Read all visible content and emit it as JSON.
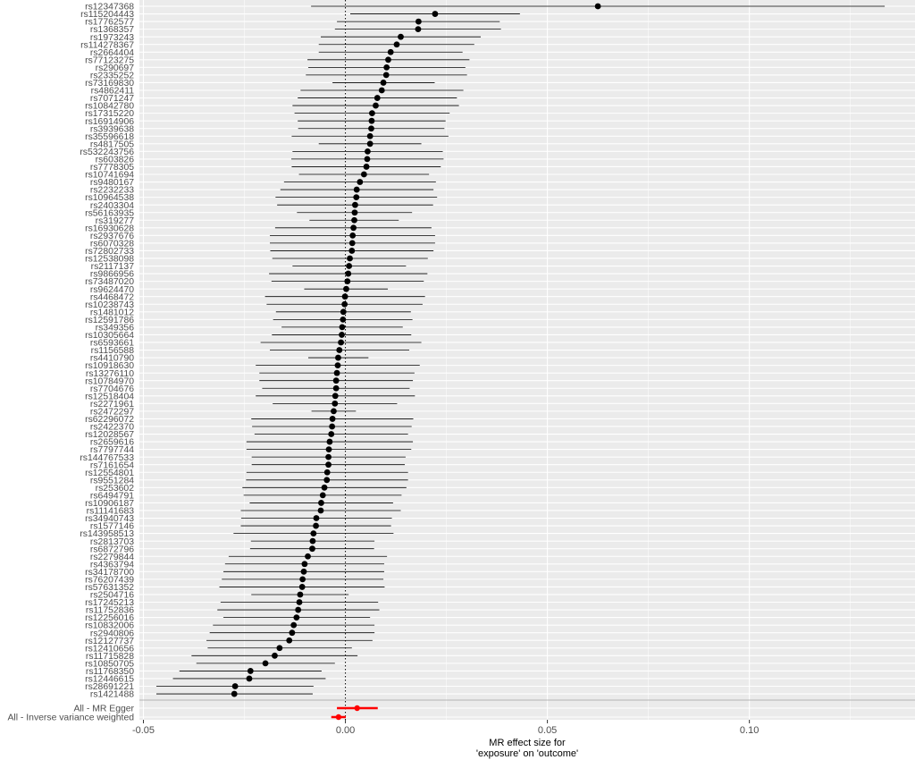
{
  "chart_data": {
    "type": "scatter",
    "subtype": "forest-plot",
    "title": "",
    "xlabel_lines": [
      "MR effect size for",
      "'exposure' on 'outcome'"
    ],
    "ylabel": "",
    "xlim": [
      -0.051,
      0.141
    ],
    "x_ticks": [
      -0.05,
      0,
      0.05,
      0.1
    ],
    "x_tick_labels": [
      "-0.05",
      "0.00",
      "0.05",
      "0.10"
    ],
    "grid": true,
    "reference_line_x": 0,
    "snps": [
      {
        "snp": "rs12347368",
        "b": 0.0625,
        "lo": -0.0085,
        "hi": 0.1335
      },
      {
        "snp": "rs115204443",
        "b": 0.0222,
        "lo": 0.0012,
        "hi": 0.0432
      },
      {
        "snp": "rs17762577",
        "b": 0.0181,
        "lo": -0.0021,
        "hi": 0.0382
      },
      {
        "snp": "rs1368357",
        "b": 0.018,
        "lo": -0.0026,
        "hi": 0.0385
      },
      {
        "snp": "rs1973243",
        "b": 0.0137,
        "lo": -0.0061,
        "hi": 0.0335
      },
      {
        "snp": "rs114278367",
        "b": 0.0127,
        "lo": -0.0066,
        "hi": 0.0319
      },
      {
        "snp": "rs2664404",
        "b": 0.0112,
        "lo": -0.0066,
        "hi": 0.029
      },
      {
        "snp": "rs77123275",
        "b": 0.0106,
        "lo": -0.0094,
        "hi": 0.0307
      },
      {
        "snp": "rs290697",
        "b": 0.0102,
        "lo": -0.0092,
        "hi": 0.0297
      },
      {
        "snp": "rs2335252",
        "b": 0.0101,
        "lo": -0.0098,
        "hi": 0.0301
      },
      {
        "snp": "rs73169830",
        "b": 0.0094,
        "lo": -0.0032,
        "hi": 0.0221
      },
      {
        "snp": "rs4862411",
        "b": 0.009,
        "lo": -0.0111,
        "hi": 0.0292
      },
      {
        "snp": "rs7071247",
        "b": 0.0079,
        "lo": -0.0118,
        "hi": 0.0276
      },
      {
        "snp": "rs10842780",
        "b": 0.0075,
        "lo": -0.0131,
        "hi": 0.0281
      },
      {
        "snp": "rs17315220",
        "b": 0.0066,
        "lo": -0.0126,
        "hi": 0.0258
      },
      {
        "snp": "rs16914906",
        "b": 0.0065,
        "lo": -0.0118,
        "hi": 0.0248
      },
      {
        "snp": "rs3939638",
        "b": 0.0064,
        "lo": -0.0117,
        "hi": 0.0245
      },
      {
        "snp": "rs35596618",
        "b": 0.0061,
        "lo": -0.0133,
        "hi": 0.0255
      },
      {
        "snp": "rs4817505",
        "b": 0.0061,
        "lo": -0.0066,
        "hi": 0.0188
      },
      {
        "snp": "rs532243756",
        "b": 0.0055,
        "lo": -0.0131,
        "hi": 0.0241
      },
      {
        "snp": "rs603826",
        "b": 0.0054,
        "lo": -0.0134,
        "hi": 0.0243
      },
      {
        "snp": "rs7778305",
        "b": 0.0052,
        "lo": -0.0133,
        "hi": 0.0236
      },
      {
        "snp": "rs10741694",
        "b": 0.0046,
        "lo": -0.0115,
        "hi": 0.0207
      },
      {
        "snp": "rs9480167",
        "b": 0.0036,
        "lo": -0.0152,
        "hi": 0.0224
      },
      {
        "snp": "rs2232233",
        "b": 0.0028,
        "lo": -0.0161,
        "hi": 0.0218
      },
      {
        "snp": "rs10964538",
        "b": 0.0027,
        "lo": -0.0173,
        "hi": 0.0227
      },
      {
        "snp": "rs2403304",
        "b": 0.0024,
        "lo": -0.0169,
        "hi": 0.0217
      },
      {
        "snp": "rs56163935",
        "b": 0.0023,
        "lo": -0.012,
        "hi": 0.0165
      },
      {
        "snp": "rs319277",
        "b": 0.0022,
        "lo": -0.0089,
        "hi": 0.0132
      },
      {
        "snp": "rs16930628",
        "b": 0.002,
        "lo": -0.0174,
        "hi": 0.0213
      },
      {
        "snp": "rs2937676",
        "b": 0.0018,
        "lo": -0.0187,
        "hi": 0.0222
      },
      {
        "snp": "rs6070328",
        "b": 0.0017,
        "lo": -0.0187,
        "hi": 0.0222
      },
      {
        "snp": "rs72802733",
        "b": 0.0016,
        "lo": -0.0186,
        "hi": 0.0218
      },
      {
        "snp": "rs12538098",
        "b": 0.0011,
        "lo": -0.0181,
        "hi": 0.0204
      },
      {
        "snp": "rs2117137",
        "b": 0.0009,
        "lo": -0.0131,
        "hi": 0.015
      },
      {
        "snp": "rs9866956",
        "b": 0.0007,
        "lo": -0.0189,
        "hi": 0.0203
      },
      {
        "snp": "rs73487020",
        "b": 0.0005,
        "lo": -0.0183,
        "hi": 0.0194
      },
      {
        "snp": "rs9624470",
        "b": 0.0002,
        "lo": -0.0102,
        "hi": 0.0105
      },
      {
        "snp": "rs4468472",
        "b": -0.0001,
        "lo": -0.0199,
        "hi": 0.0197
      },
      {
        "snp": "rs10238743",
        "b": -0.0002,
        "lo": -0.0195,
        "hi": 0.0191
      },
      {
        "snp": "rs1481012",
        "b": -0.0005,
        "lo": -0.0172,
        "hi": 0.0162
      },
      {
        "snp": "rs12591786",
        "b": -0.0006,
        "lo": -0.0179,
        "hi": 0.0166
      },
      {
        "snp": "rs349356",
        "b": -0.0008,
        "lo": -0.0158,
        "hi": 0.0142
      },
      {
        "snp": "rs10305664",
        "b": -0.0009,
        "lo": -0.0182,
        "hi": 0.0163
      },
      {
        "snp": "rs6593661",
        "b": -0.0011,
        "lo": -0.021,
        "hi": 0.0188
      },
      {
        "snp": "rs1156588",
        "b": -0.0015,
        "lo": -0.0187,
        "hi": 0.0158
      },
      {
        "snp": "rs4410790",
        "b": -0.0018,
        "lo": -0.0092,
        "hi": 0.0057
      },
      {
        "snp": "rs10918630",
        "b": -0.0019,
        "lo": -0.0222,
        "hi": 0.0184
      },
      {
        "snp": "rs13276110",
        "b": -0.0021,
        "lo": -0.0213,
        "hi": 0.0171
      },
      {
        "snp": "rs10784970",
        "b": -0.0023,
        "lo": -0.0213,
        "hi": 0.0167
      },
      {
        "snp": "rs7704676",
        "b": -0.0023,
        "lo": -0.0206,
        "hi": 0.0159
      },
      {
        "snp": "rs12518404",
        "b": -0.0025,
        "lo": -0.0222,
        "hi": 0.0172
      },
      {
        "snp": "rs2271961",
        "b": -0.0026,
        "lo": -0.018,
        "hi": 0.0128
      },
      {
        "snp": "rs2472297",
        "b": -0.0029,
        "lo": -0.0084,
        "hi": 0.0026
      },
      {
        "snp": "rs62296072",
        "b": -0.0032,
        "lo": -0.0233,
        "hi": 0.0168
      },
      {
        "snp": "rs2422370",
        "b": -0.0033,
        "lo": -0.0231,
        "hi": 0.0164
      },
      {
        "snp": "rs12028567",
        "b": -0.0035,
        "lo": -0.0225,
        "hi": 0.0155
      },
      {
        "snp": "rs2659616",
        "b": -0.0039,
        "lo": -0.0245,
        "hi": 0.0167
      },
      {
        "snp": "rs7797744",
        "b": -0.0041,
        "lo": -0.0245,
        "hi": 0.0163
      },
      {
        "snp": "rs144767533",
        "b": -0.0042,
        "lo": -0.0232,
        "hi": 0.0149
      },
      {
        "snp": "rs7161654",
        "b": -0.0042,
        "lo": -0.0232,
        "hi": 0.0147
      },
      {
        "snp": "rs12554801",
        "b": -0.0045,
        "lo": -0.0245,
        "hi": 0.0155
      },
      {
        "snp": "rs9551284",
        "b": -0.0046,
        "lo": -0.0246,
        "hi": 0.0155
      },
      {
        "snp": "rs253602",
        "b": -0.0052,
        "lo": -0.0255,
        "hi": 0.0151
      },
      {
        "snp": "rs6494791",
        "b": -0.0056,
        "lo": -0.0252,
        "hi": 0.0139
      },
      {
        "snp": "rs10906187",
        "b": -0.006,
        "lo": -0.0237,
        "hi": 0.0118
      },
      {
        "snp": "rs11141683",
        "b": -0.0061,
        "lo": -0.0259,
        "hi": 0.0137
      },
      {
        "snp": "rs34940743",
        "b": -0.0072,
        "lo": -0.0258,
        "hi": 0.0115
      },
      {
        "snp": "rs1577146",
        "b": -0.0073,
        "lo": -0.0259,
        "hi": 0.0113
      },
      {
        "snp": "rs143958513",
        "b": -0.0079,
        "lo": -0.0277,
        "hi": 0.0119
      },
      {
        "snp": "rs2813703",
        "b": -0.0081,
        "lo": -0.0234,
        "hi": 0.0072
      },
      {
        "snp": "rs6872796",
        "b": -0.0082,
        "lo": -0.0236,
        "hi": 0.0071
      },
      {
        "snp": "rs2279844",
        "b": -0.0093,
        "lo": -0.0289,
        "hi": 0.0103
      },
      {
        "snp": "rs4363794",
        "b": -0.0101,
        "lo": -0.0298,
        "hi": 0.0096
      },
      {
        "snp": "rs34178700",
        "b": -0.0103,
        "lo": -0.0302,
        "hi": 0.0096
      },
      {
        "snp": "rs76207439",
        "b": -0.0106,
        "lo": -0.0306,
        "hi": 0.0094
      },
      {
        "snp": "rs57631352",
        "b": -0.0107,
        "lo": -0.0312,
        "hi": 0.0097
      },
      {
        "snp": "rs2504716",
        "b": -0.0112,
        "lo": -0.0233,
        "hi": 0.0008
      },
      {
        "snp": "rs17245213",
        "b": -0.0114,
        "lo": -0.0309,
        "hi": 0.0081
      },
      {
        "snp": "rs11752836",
        "b": -0.0117,
        "lo": -0.0317,
        "hi": 0.0084
      },
      {
        "snp": "rs12256016",
        "b": -0.0121,
        "lo": -0.0302,
        "hi": 0.0061
      },
      {
        "snp": "rs10832006",
        "b": -0.0128,
        "lo": -0.0328,
        "hi": 0.0072
      },
      {
        "snp": "rs2940806",
        "b": -0.0132,
        "lo": -0.0336,
        "hi": 0.0072
      },
      {
        "snp": "rs12127737",
        "b": -0.0139,
        "lo": -0.0344,
        "hi": 0.0067
      },
      {
        "snp": "rs12410656",
        "b": -0.0163,
        "lo": -0.0341,
        "hi": 0.0016
      },
      {
        "snp": "rs11715828",
        "b": -0.0175,
        "lo": -0.0381,
        "hi": 0.003
      },
      {
        "snp": "rs10850705",
        "b": -0.0198,
        "lo": -0.0369,
        "hi": -0.0026
      },
      {
        "snp": "rs11768350",
        "b": -0.0235,
        "lo": -0.0411,
        "hi": -0.0059
      },
      {
        "snp": "rs12446615",
        "b": -0.0238,
        "lo": -0.0427,
        "hi": -0.0049
      },
      {
        "snp": "rs28691221",
        "b": -0.0273,
        "lo": -0.0468,
        "hi": -0.0079
      },
      {
        "snp": "rs1421488",
        "b": -0.0275,
        "lo": -0.0468,
        "hi": -0.0081
      }
    ],
    "summary": [
      {
        "label": "All - MR Egger",
        "b": 0.0029,
        "lo": -0.0021,
        "hi": 0.008
      },
      {
        "label": "All - Inverse variance weighted",
        "b": -0.0017,
        "lo": -0.0035,
        "hi": 0.0001
      }
    ],
    "colors": {
      "panel_bg": "#ebebeb",
      "grid_major": "#ffffff",
      "point": "#000000",
      "summary": "#ff0000",
      "tick_text": "#4d4d4d"
    }
  }
}
